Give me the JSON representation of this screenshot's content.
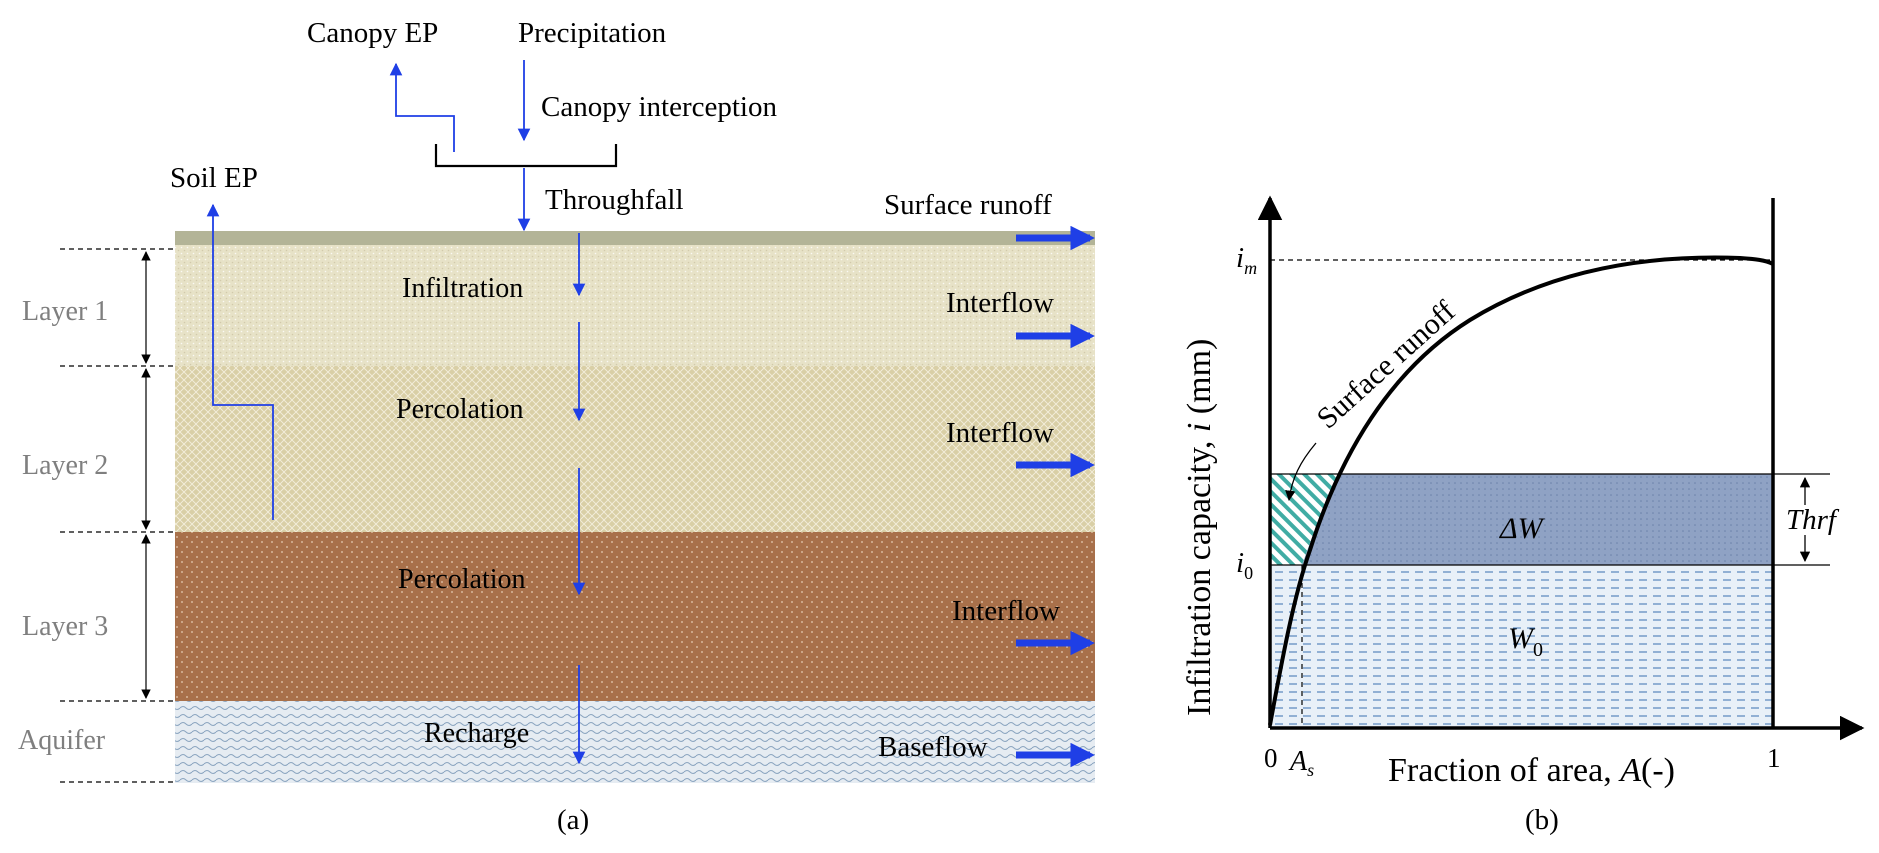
{
  "figure": {
    "panel_a": {
      "caption": "(a)",
      "atmosphere": {
        "canopy_ep": "Canopy EP",
        "precipitation": "Precipitation",
        "canopy_interception": "Canopy interception",
        "throughfall": "Throughfall",
        "soil_ep": "Soil EP"
      },
      "layers": [
        {
          "label": "Layer 1",
          "color": "#e7e2c7"
        },
        {
          "label": "Layer 2",
          "color": "#ddd3ad"
        },
        {
          "label": "Layer 3",
          "color": "#a8704a"
        },
        {
          "label": "Aquifer",
          "color": "#dfe6ee"
        }
      ],
      "vertical_fluxes": [
        "Infiltration",
        "Percolation",
        "Percolation",
        "Recharge"
      ],
      "lateral_fluxes": [
        "Surface runoff",
        "Interflow",
        "Interflow",
        "Interflow",
        "Baseflow"
      ],
      "colors": {
        "arrow_blue": "#1f3fe6",
        "surface_band": "#b3b497"
      }
    },
    "panel_b": {
      "caption": "(b)",
      "ylabel_parts": [
        "Infiltration capacity, ",
        "i",
        " (mm)"
      ],
      "xlabel_parts": [
        "Fraction of area, ",
        "A",
        "(-)"
      ],
      "tick_i_m": {
        "base": "i",
        "sub": "m"
      },
      "tick_i_0": {
        "base": "i",
        "sub": "0"
      },
      "tick_A_s": {
        "base": "A",
        "sub": "s"
      },
      "tick_zero": "0",
      "tick_one": "1",
      "curve_label": "Surface runoff",
      "delta_w": {
        "base": "ΔW"
      },
      "w0": {
        "base": "W",
        "sub": "0"
      },
      "thrf": "Thrf",
      "colors": {
        "delta_w_fill": "#8fa2c4",
        "w0_fill": "#e2ecf6",
        "hatch": "#2ba39a"
      }
    }
  }
}
